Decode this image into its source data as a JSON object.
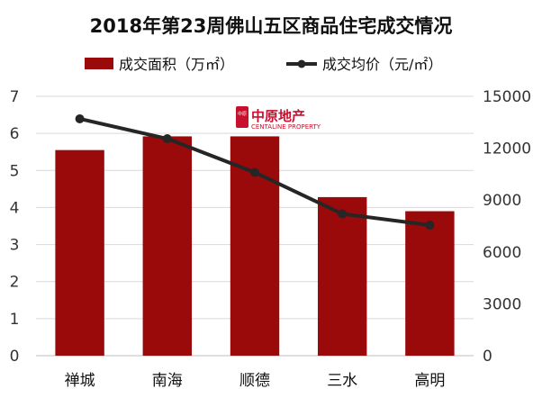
{
  "chart_data": {
    "type": "bar",
    "title": "2018年第23周佛山五区商品住宅成交情况",
    "categories": [
      "禅城",
      "南海",
      "顺德",
      "三水",
      "高明"
    ],
    "series": [
      {
        "name": "成交面积（万㎡）",
        "kind": "bar",
        "axis": "left",
        "color": "#9b0a0a",
        "values": [
          5.55,
          5.92,
          5.92,
          4.28,
          3.9
        ]
      },
      {
        "name": "成交均价（元/㎡）",
        "kind": "line",
        "axis": "right",
        "color": "#262626",
        "values": [
          13700,
          12550,
          10600,
          8200,
          7550
        ]
      }
    ],
    "y_left": {
      "min": 0,
      "max": 7,
      "ticks": [
        "0",
        "1",
        "2",
        "3",
        "4",
        "5",
        "6",
        "7"
      ]
    },
    "y_right": {
      "min": 0,
      "max": 15000,
      "ticks": [
        "0",
        "3000",
        "6000",
        "9000",
        "12000",
        "15000"
      ]
    },
    "grid": true,
    "legend_position": "top"
  },
  "watermark": {
    "logo_glyph": "中原",
    "name": "中原地产",
    "subtitle": "CENTALINE PROPERTY"
  }
}
